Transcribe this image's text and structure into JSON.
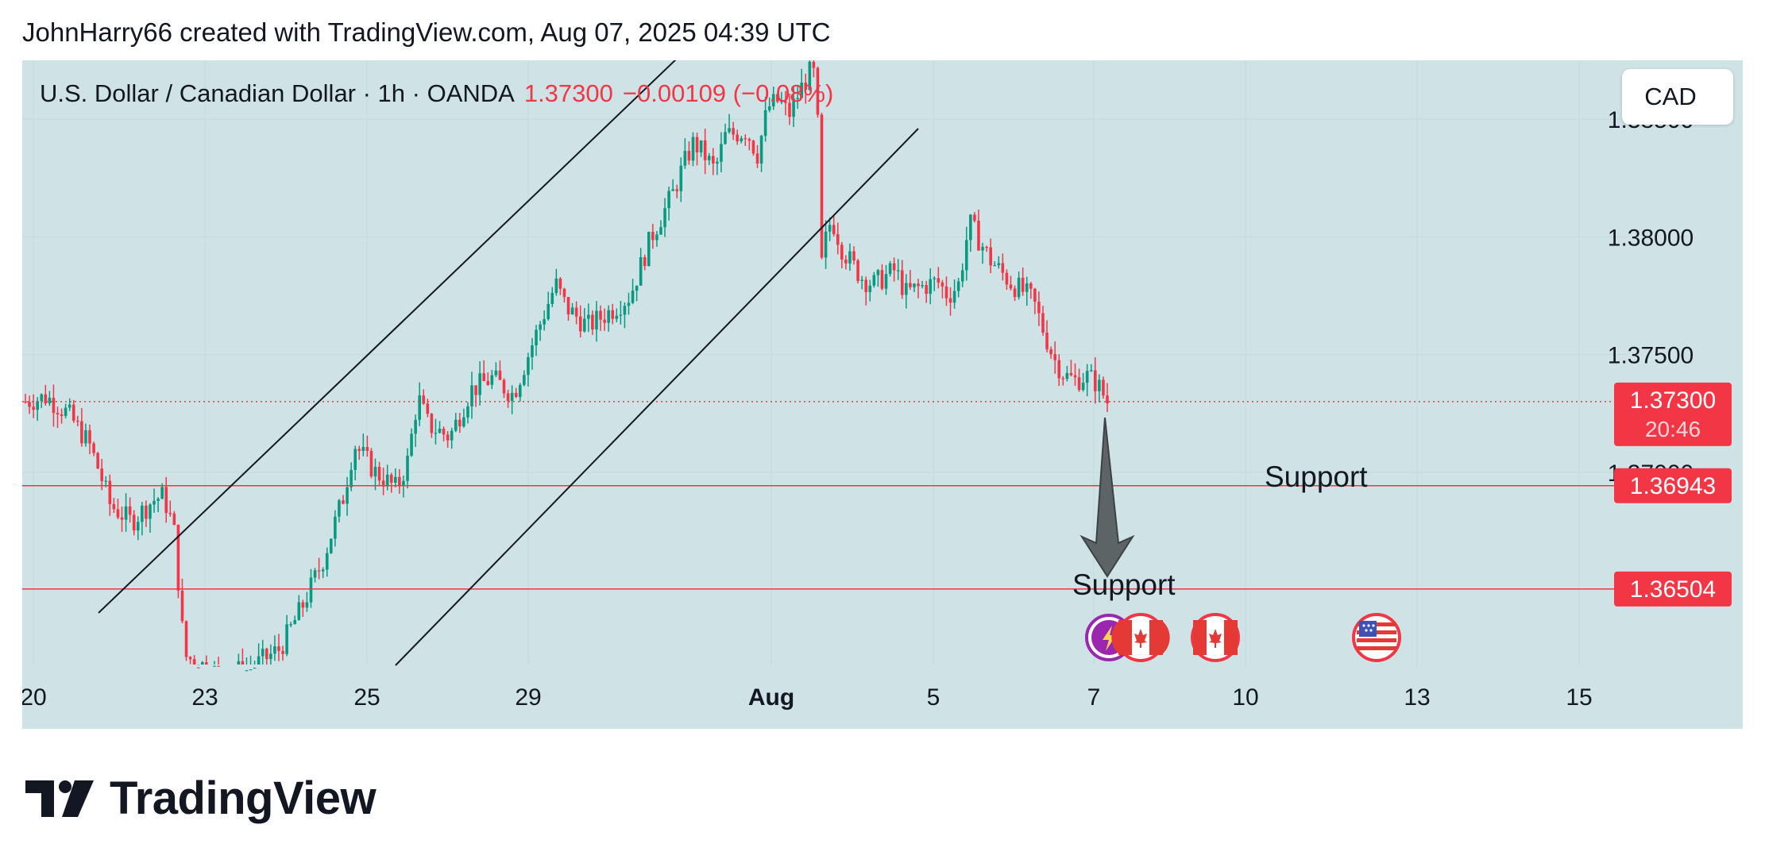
{
  "header": {
    "title": "JohnHarry66 created with TradingView.com, Aug 07, 2025 04:39 UTC"
  },
  "ticker": {
    "symbol": "U.S. Dollar / Canadian Dollar · 1h · OANDA",
    "price": "1.37300",
    "change": "−0.00109 (−0.08%)"
  },
  "currency_button": "CAD",
  "brand": {
    "name": "TradingView"
  },
  "colors": {
    "background": "#cfe3e6",
    "up": "#089981",
    "down": "#f23645",
    "line": "#131722",
    "arrow": "#5d6466"
  },
  "chart_data": {
    "type": "candlestick",
    "timeframe": "1h",
    "ylim": [
      1.3618,
      1.3875
    ],
    "y_ticks": [
      "1.38000",
      "1.37500",
      "1.37000",
      "1.38500"
    ],
    "x_ticks": [
      "20",
      "23",
      "25",
      "29",
      "Aug",
      "5",
      "7",
      "10",
      "13",
      "15"
    ],
    "price_path": [
      [
        0,
        1.373
      ],
      [
        2,
        1.3732
      ],
      [
        4,
        1.3725
      ],
      [
        6,
        1.3712
      ],
      [
        7,
        1.37
      ],
      [
        8,
        1.3686
      ],
      [
        10,
        1.3679
      ],
      [
        12,
        1.3688
      ],
      [
        13,
        1.369
      ],
      [
        14,
        1.3676
      ],
      [
        15,
        1.3622
      ],
      [
        18,
        1.3615
      ],
      [
        21,
        1.3616
      ],
      [
        24,
        1.3625
      ],
      [
        26,
        1.3642
      ],
      [
        28,
        1.3662
      ],
      [
        30,
        1.369
      ],
      [
        31,
        1.3712
      ],
      [
        33,
        1.37
      ],
      [
        35,
        1.3693
      ],
      [
        36,
        1.3704
      ],
      [
        37,
        1.3732
      ],
      [
        38,
        1.372
      ],
      [
        40,
        1.3715
      ],
      [
        42,
        1.3735
      ],
      [
        44,
        1.374
      ],
      [
        46,
        1.3733
      ],
      [
        48,
        1.3757
      ],
      [
        50,
        1.378
      ],
      [
        51,
        1.377
      ],
      [
        53,
        1.3762
      ],
      [
        55,
        1.3768
      ],
      [
        57,
        1.3775
      ],
      [
        59,
        1.38
      ],
      [
        61,
        1.3818
      ],
      [
        62,
        1.383
      ],
      [
        63,
        1.384
      ],
      [
        64,
        1.3835
      ],
      [
        65,
        1.3828
      ],
      [
        66,
        1.3843
      ],
      [
        68,
        1.3845
      ],
      [
        69,
        1.3835
      ],
      [
        70,
        1.3855
      ],
      [
        71,
        1.3858
      ],
      [
        72,
        1.3852
      ],
      [
        73,
        1.3862
      ],
      [
        74,
        1.387
      ],
      [
        74.6,
        1.3868
      ],
      [
        75,
        1.3786
      ],
      [
        75.5,
        1.38
      ],
      [
        76,
        1.3808
      ],
      [
        77,
        1.3795
      ],
      [
        78,
        1.3788
      ],
      [
        79,
        1.3782
      ],
      [
        80,
        1.378
      ],
      [
        82,
        1.3786
      ],
      [
        83,
        1.3776
      ],
      [
        84,
        1.3778
      ],
      [
        86,
        1.3781
      ],
      [
        87,
        1.3775
      ],
      [
        88,
        1.378
      ],
      [
        89,
        1.3806
      ],
      [
        90,
        1.3798
      ],
      [
        91,
        1.379
      ],
      [
        92,
        1.3785
      ],
      [
        93,
        1.378
      ],
      [
        94,
        1.3777
      ],
      [
        95,
        1.3773
      ],
      [
        96,
        1.376
      ],
      [
        97,
        1.3748
      ],
      [
        98,
        1.3741
      ],
      [
        99,
        1.3739
      ],
      [
        100,
        1.3741
      ],
      [
        101,
        1.3738
      ],
      [
        102,
        1.373
      ]
    ],
    "horizontal_levels": [
      {
        "label": "1.37300",
        "sublabel": "20:46",
        "value": 1.373,
        "style": "dotted"
      },
      {
        "label": "1.36943",
        "value": 1.36943,
        "style": "solid"
      },
      {
        "label": "1.36504",
        "value": 1.36504,
        "style": "solid"
      }
    ],
    "annotations": [
      {
        "text": "Support"
      },
      {
        "text": "Support"
      }
    ],
    "trend_channel": "ascending parallel lines",
    "arrow": "down",
    "event_icons": [
      "lightning",
      "canada-flag",
      "canada-flag",
      "us-flag"
    ]
  }
}
